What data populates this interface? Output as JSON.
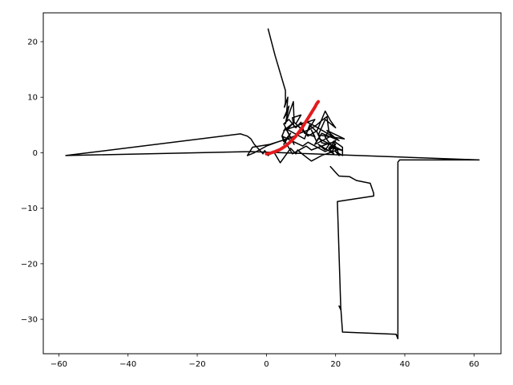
{
  "chart_data": {
    "type": "line",
    "title": "",
    "xlabel": "",
    "ylabel": "",
    "xlim": [
      -64.5,
      67.8
    ],
    "ylim": [
      -36.2,
      25.2
    ],
    "xticks": [
      -60,
      -40,
      -20,
      0,
      20,
      40,
      60
    ],
    "yticks": [
      -30,
      -20,
      -10,
      0,
      10,
      20
    ],
    "xtick_labels": [
      "−60",
      "−40",
      "−20",
      "0",
      "20",
      "40",
      "60"
    ],
    "ytick_labels": [
      "−30",
      "−20",
      "−10",
      "0",
      "10",
      "20"
    ],
    "grid": false,
    "legend": "none",
    "series": [
      {
        "color": "#000000",
        "x": [
          0.5,
          2.5,
          5.5,
          5.5,
          5.2,
          6.2,
          5.8,
          5.0,
          6.5,
          5.5,
          7.8,
          8.0,
          5.0,
          14.0,
          11.5,
          8.0,
          6.0,
          11.0,
          12.5,
          14.5,
          17.0,
          18.5,
          20.0,
          17.0,
          15.0,
          22.5,
          17.5,
          20.0,
          14.0,
          11.5,
          8.0,
          7.5,
          10.0,
          8.5,
          12.0,
          14.5,
          16.0,
          18.0,
          20.0,
          18.0,
          20.0,
          17.0,
          12.0,
          10.5,
          7.5,
          4.5,
          7.5,
          11.5,
          13.0,
          18.5,
          17.0,
          15.0,
          19.5,
          18.0,
          20.0,
          19.0,
          19.5,
          22.0,
          15.0,
          14.0,
          19.0,
          21.0,
          16.0,
          14.5,
          13.0,
          14.0,
          11.0,
          10.0,
          8.5,
          6.5,
          5.0,
          8.0,
          5.5,
          4.5,
          5.0,
          7.0,
          5.0,
          6.0,
          3.5,
          1.0,
          -4.0,
          -5.5,
          -3.5,
          0.0,
          3.5,
          6.5,
          8.5,
          10.0,
          12.5,
          14.5,
          16.0,
          17.5,
          18.0,
          17.0,
          18.5,
          20.0,
          19.5,
          22.0,
          22.0,
          20.0,
          21.0,
          20.5,
          16.0,
          13.0,
          10.5,
          9.0,
          8.5,
          7.0,
          4.0,
          2.0,
          0.5,
          -0.5,
          -1.0,
          -3.5,
          -4.5,
          -5.5,
          -6.5,
          -7.5,
          -58.0,
          -4.5,
          61.5,
          38.5,
          38.0,
          38.0,
          37.5,
          22.0,
          21.5,
          21.0,
          21.5,
          20.5,
          31.0,
          31.0,
          30.0,
          26.0,
          24.0,
          21.0,
          20.5,
          18.5
        ],
        "y": [
          22.3,
          17.5,
          11.2,
          9.0,
          8.2,
          10.0,
          7.0,
          6.2,
          8.4,
          5.2,
          9.2,
          5.5,
          4.0,
          6.0,
          3.5,
          5.5,
          4.2,
          2.5,
          5.0,
          3.8,
          7.5,
          5.8,
          4.5,
          6.0,
          3.2,
          2.5,
          4.0,
          2.6,
          4.8,
          5.6,
          4.6,
          6.3,
          6.8,
          5.2,
          3.0,
          3.9,
          1.8,
          1.5,
          2.2,
          0.8,
          1.1,
          0.2,
          1.9,
          1.2,
          2.1,
          3.0,
          -0.2,
          1.2,
          0.5,
          1.8,
          0.5,
          1.5,
          -0.2,
          0.8,
          1.6,
          0.2,
          0.8,
          0.4,
          2.6,
          1.5,
          3.1,
          2.2,
          3.5,
          2.0,
          4.1,
          2.9,
          3.5,
          5.5,
          4.5,
          6.0,
          5.2,
          1.5,
          4.5,
          3.0,
          2.0,
          3.5,
          1.5,
          2.5,
          2.0,
          1.5,
          1.0,
          -0.5,
          0.0,
          1.2,
          2.0,
          2.6,
          3.1,
          3.6,
          4.2,
          5.0,
          5.8,
          6.5,
          4.0,
          2.8,
          1.5,
          0.6,
          2.1,
          1.0,
          -0.5,
          0.2,
          -0.5,
          0.5,
          -0.5,
          -1.5,
          -0.3,
          0.5,
          -0.2,
          0.8,
          -1.8,
          0.3,
          -0.5,
          0.4,
          -0.2,
          1.5,
          2.5,
          3.0,
          3.2,
          3.4,
          -0.5,
          0.2,
          -1.3,
          -1.3,
          -1.7,
          -33.5,
          -32.7,
          -32.3,
          -28.0,
          -27.6,
          -28.3,
          -8.8,
          -7.8,
          -7.3,
          -5.5,
          -5.0,
          -4.3,
          -4.2,
          -3.9,
          -2.5
        ]
      },
      {
        "color": "#e31a1c",
        "x": [
          0.0,
          1.0,
          2.5,
          4.0,
          5.5,
          7.0,
          8.5,
          10.0,
          11.0,
          12.0,
          13.0,
          14.0,
          14.5,
          15.0
        ],
        "y": [
          -0.2,
          -0.1,
          0.2,
          0.6,
          1.2,
          2.0,
          3.0,
          4.2,
          5.2,
          6.2,
          7.2,
          8.2,
          8.8,
          9.2
        ]
      }
    ]
  }
}
